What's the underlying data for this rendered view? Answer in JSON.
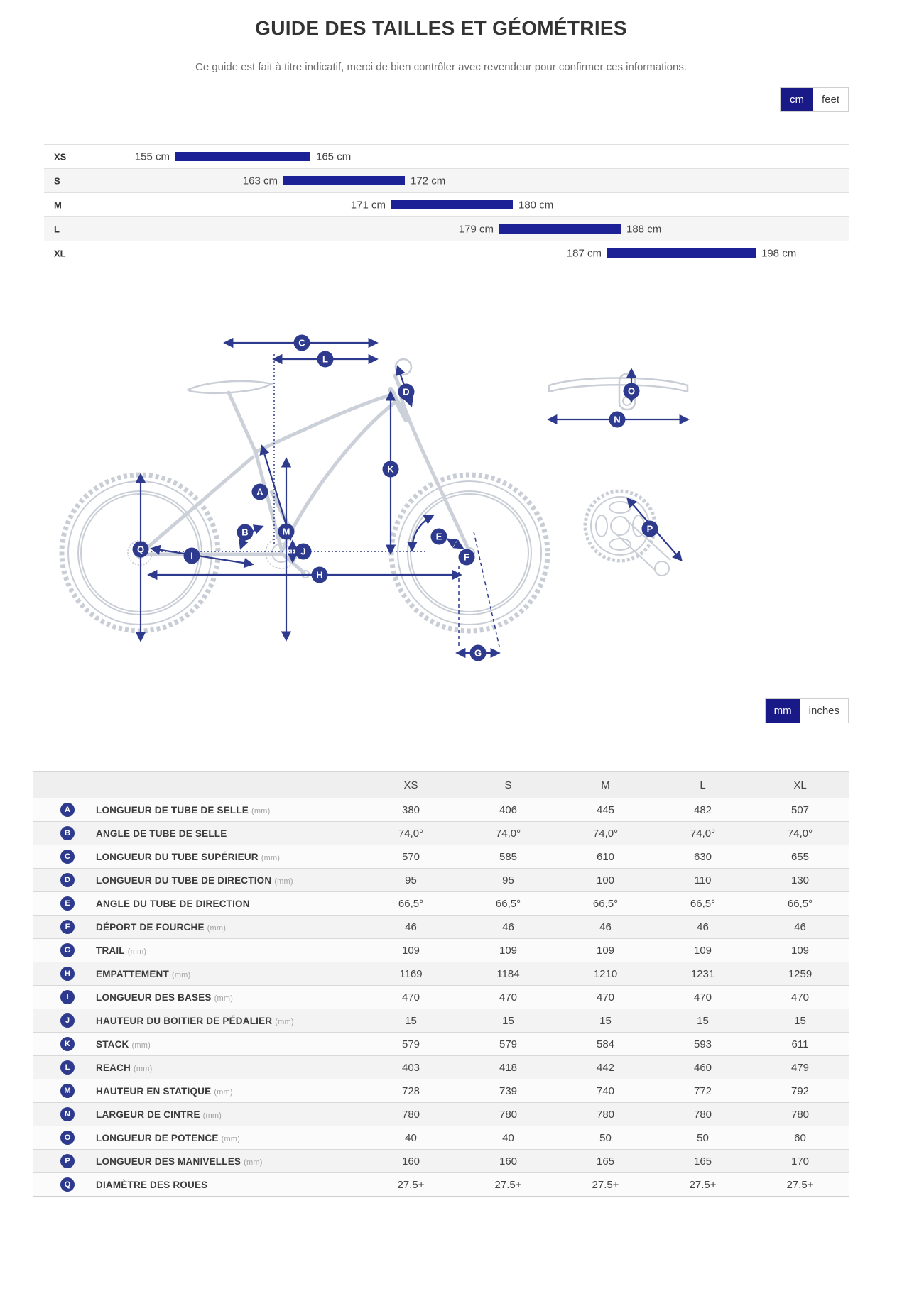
{
  "page": {
    "title": "GUIDE DES TAILLES ET GÉOMÉTRIES",
    "subtitle": "Ce guide est fait à titre indicatif, merci de bien contrôler avec revendeur pour confirmer ces informations."
  },
  "colors": {
    "accent_navy": "#2d3a8d",
    "toggle_selected": "#191987",
    "bar_blue": "#1c2196"
  },
  "unit_toggles": {
    "height": {
      "options": [
        "cm",
        "feet"
      ],
      "selected": "cm"
    },
    "geometry": {
      "options": [
        "mm",
        "inches"
      ],
      "selected": "mm"
    }
  },
  "size_chart": {
    "unit": "cm",
    "rows": [
      {
        "size": "XS",
        "min": 155,
        "max": 165,
        "min_label": "155 cm",
        "max_label": "165 cm"
      },
      {
        "size": "S",
        "min": 163,
        "max": 172,
        "min_label": "163 cm",
        "max_label": "172 cm"
      },
      {
        "size": "M",
        "min": 171,
        "max": 180,
        "min_label": "171 cm",
        "max_label": "180 cm"
      },
      {
        "size": "L",
        "min": 179,
        "max": 188,
        "min_label": "179 cm",
        "max_label": "188 cm"
      },
      {
        "size": "XL",
        "min": 187,
        "max": 198,
        "min_label": "187 cm",
        "max_label": "198 cm"
      }
    ]
  },
  "diagram": {
    "badges": [
      {
        "letter": "A"
      },
      {
        "letter": "B"
      },
      {
        "letter": "C"
      },
      {
        "letter": "D"
      },
      {
        "letter": "E"
      },
      {
        "letter": "F"
      },
      {
        "letter": "G"
      },
      {
        "letter": "H"
      },
      {
        "letter": "I"
      },
      {
        "letter": "J"
      },
      {
        "letter": "K"
      },
      {
        "letter": "L"
      },
      {
        "letter": "M"
      },
      {
        "letter": "N"
      },
      {
        "letter": "O"
      },
      {
        "letter": "P"
      },
      {
        "letter": "Q"
      }
    ]
  },
  "geometry_table": {
    "columns": [
      "XS",
      "S",
      "M",
      "L",
      "XL"
    ],
    "rows": [
      {
        "letter": "A",
        "label": "LONGUEUR DE TUBE DE SELLE",
        "unit": "(mm)",
        "values": [
          "380",
          "406",
          "445",
          "482",
          "507"
        ]
      },
      {
        "letter": "B",
        "label": "ANGLE DE TUBE DE SELLE",
        "unit": "",
        "values": [
          "74,0°",
          "74,0°",
          "74,0°",
          "74,0°",
          "74,0°"
        ]
      },
      {
        "letter": "C",
        "label": "LONGUEUR DU TUBE SUPÉRIEUR",
        "unit": "(mm)",
        "values": [
          "570",
          "585",
          "610",
          "630",
          "655"
        ]
      },
      {
        "letter": "D",
        "label": "LONGUEUR DU TUBE DE DIRECTION",
        "unit": "(mm)",
        "values": [
          "95",
          "95",
          "100",
          "110",
          "130"
        ]
      },
      {
        "letter": "E",
        "label": "ANGLE DU TUBE DE DIRECTION",
        "unit": "",
        "values": [
          "66,5°",
          "66,5°",
          "66,5°",
          "66,5°",
          "66,5°"
        ]
      },
      {
        "letter": "F",
        "label": "DÉPORT DE FOURCHE",
        "unit": "(mm)",
        "values": [
          "46",
          "46",
          "46",
          "46",
          "46"
        ]
      },
      {
        "letter": "G",
        "label": "TRAIL",
        "unit": "(mm)",
        "values": [
          "109",
          "109",
          "109",
          "109",
          "109"
        ]
      },
      {
        "letter": "H",
        "label": "EMPATTEMENT",
        "unit": "(mm)",
        "values": [
          "1169",
          "1184",
          "1210",
          "1231",
          "1259"
        ]
      },
      {
        "letter": "I",
        "label": "LONGUEUR DES BASES",
        "unit": "(mm)",
        "values": [
          "470",
          "470",
          "470",
          "470",
          "470"
        ]
      },
      {
        "letter": "J",
        "label": "HAUTEUR DU BOITIER DE PÉDALIER",
        "unit": "(mm)",
        "values": [
          "15",
          "15",
          "15",
          "15",
          "15"
        ]
      },
      {
        "letter": "K",
        "label": "STACK",
        "unit": "(mm)",
        "values": [
          "579",
          "579",
          "584",
          "593",
          "611"
        ]
      },
      {
        "letter": "L",
        "label": "REACH",
        "unit": "(mm)",
        "values": [
          "403",
          "418",
          "442",
          "460",
          "479"
        ]
      },
      {
        "letter": "M",
        "label": "HAUTEUR EN STATIQUE",
        "unit": "(mm)",
        "values": [
          "728",
          "739",
          "740",
          "772",
          "792"
        ]
      },
      {
        "letter": "N",
        "label": "LARGEUR DE CINTRE",
        "unit": "(mm)",
        "values": [
          "780",
          "780",
          "780",
          "780",
          "780"
        ]
      },
      {
        "letter": "O",
        "label": "LONGUEUR DE POTENCE",
        "unit": "(mm)",
        "values": [
          "40",
          "40",
          "50",
          "50",
          "60"
        ]
      },
      {
        "letter": "P",
        "label": "LONGUEUR DES MANIVELLES",
        "unit": "(mm)",
        "values": [
          "160",
          "160",
          "165",
          "165",
          "170"
        ]
      },
      {
        "letter": "Q",
        "label": "DIAMÈTRE DES ROUES",
        "unit": "",
        "values": [
          "27.5+",
          "27.5+",
          "27.5+",
          "27.5+",
          "27.5+"
        ]
      }
    ]
  }
}
